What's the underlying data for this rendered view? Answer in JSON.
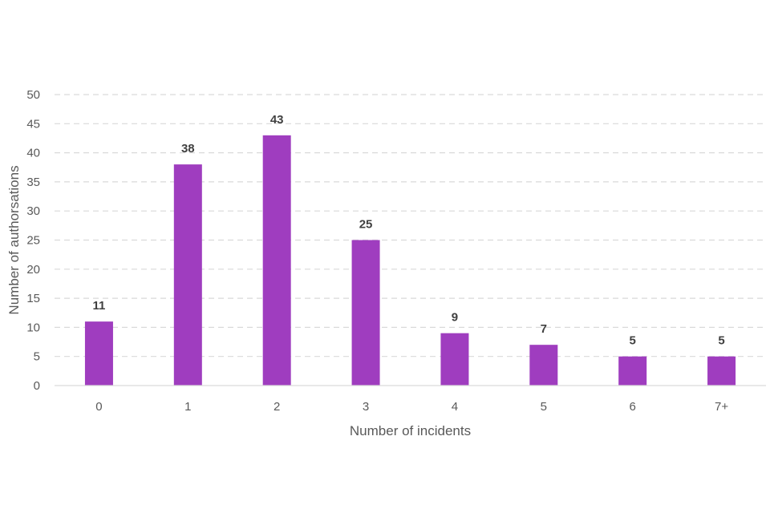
{
  "chart_data": {
    "type": "bar",
    "categories": [
      "0",
      "1",
      "2",
      "3",
      "4",
      "5",
      "6",
      "7+"
    ],
    "values": [
      11,
      38,
      43,
      25,
      9,
      7,
      5,
      5
    ],
    "data_labels": [
      "11",
      "38",
      "43",
      "25",
      "9",
      "7",
      "5",
      "5"
    ],
    "xlabel": "Number of incidents",
    "ylabel": "Number of authorsations",
    "ylim": [
      0,
      50
    ],
    "yticks": [
      0,
      5,
      10,
      15,
      20,
      25,
      30,
      35,
      40,
      45,
      50
    ],
    "grid": true,
    "legend": "none",
    "bar_color": "#9f3dbf"
  }
}
